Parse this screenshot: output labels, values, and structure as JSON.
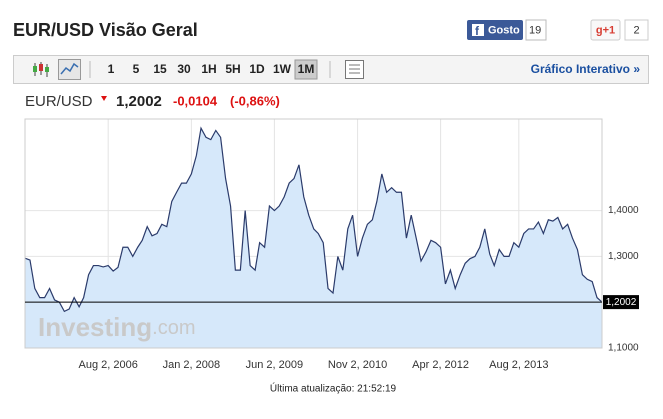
{
  "header": {
    "title": "EUR/USD Visão Geral",
    "like_label": "Gosto",
    "like_count": "19",
    "plus_label": "g+1",
    "plus_count": "2"
  },
  "toolbar": {
    "intervals": [
      "1",
      "5",
      "15",
      "30",
      "1H",
      "5H",
      "1D",
      "1W",
      "1M"
    ],
    "link": "Gráfico Interativo »"
  },
  "quote": {
    "symbol": "EUR/USD",
    "change": "-0,0104",
    "change_pct": "(-0,86%)"
  },
  "watermark": {
    "brand": "Investing",
    "suffix": ".com"
  },
  "footer": "Última atualização: 21:52:19",
  "chart_data": {
    "type": "line",
    "color": "#2b3b6b",
    "fill": "#d6e8fa",
    "grid": true,
    "last_price": 1.2002,
    "last_price_label": "1,2002",
    "xlim": [
      "2005-03-02",
      "2015-01-02"
    ],
    "xticks": [
      {
        "value": "2006-08-02",
        "label": "Aug 2, 2006"
      },
      {
        "value": "2008-01-02",
        "label": "Jan 2, 2008"
      },
      {
        "value": "2009-06-02",
        "label": "Jun 2, 2009"
      },
      {
        "value": "2010-11-02",
        "label": "Nov 2, 2010"
      },
      {
        "value": "2012-04-02",
        "label": "Apr 2, 2012"
      },
      {
        "value": "2013-08-02",
        "label": "Aug 2, 2013"
      }
    ],
    "ylim": [
      1.1,
      1.6
    ],
    "yticks": [
      {
        "value": 1.1,
        "label": "1,1000"
      },
      {
        "value": 1.3,
        "label": "1,3000"
      },
      {
        "value": 1.4,
        "label": "1,4000"
      }
    ],
    "x": [
      "2005-03-02",
      "2005-04-02",
      "2005-05-02",
      "2005-06-02",
      "2005-07-02",
      "2005-08-02",
      "2005-09-02",
      "2005-10-02",
      "2005-11-02",
      "2005-12-02",
      "2006-01-02",
      "2006-02-02",
      "2006-03-02",
      "2006-04-02",
      "2006-05-02",
      "2006-06-02",
      "2006-07-02",
      "2006-08-02",
      "2006-09-02",
      "2006-10-02",
      "2006-11-02",
      "2006-12-02",
      "2007-01-02",
      "2007-02-02",
      "2007-03-02",
      "2007-04-02",
      "2007-05-02",
      "2007-06-02",
      "2007-07-02",
      "2007-08-02",
      "2007-09-02",
      "2007-10-02",
      "2007-11-02",
      "2007-12-02",
      "2008-01-02",
      "2008-02-02",
      "2008-03-02",
      "2008-04-02",
      "2008-05-02",
      "2008-06-02",
      "2008-07-02",
      "2008-08-02",
      "2008-09-02",
      "2008-10-02",
      "2008-11-02",
      "2008-12-02",
      "2009-01-02",
      "2009-02-02",
      "2009-03-02",
      "2009-04-02",
      "2009-05-02",
      "2009-06-02",
      "2009-07-02",
      "2009-08-02",
      "2009-09-02",
      "2009-10-02",
      "2009-11-02",
      "2009-12-02",
      "2010-01-02",
      "2010-02-02",
      "2010-03-02",
      "2010-04-02",
      "2010-05-02",
      "2010-06-02",
      "2010-07-02",
      "2010-08-02",
      "2010-09-02",
      "2010-10-02",
      "2010-11-02",
      "2010-12-02",
      "2011-01-02",
      "2011-02-02",
      "2011-03-02",
      "2011-04-02",
      "2011-05-02",
      "2011-06-02",
      "2011-07-02",
      "2011-08-02",
      "2011-09-02",
      "2011-10-02",
      "2011-11-02",
      "2011-12-02",
      "2012-01-02",
      "2012-02-02",
      "2012-03-02",
      "2012-04-02",
      "2012-05-02",
      "2012-06-02",
      "2012-07-02",
      "2012-08-02",
      "2012-09-02",
      "2012-10-02",
      "2012-11-02",
      "2012-12-02",
      "2013-01-02",
      "2013-02-02",
      "2013-03-02",
      "2013-04-02",
      "2013-05-02",
      "2013-06-02",
      "2013-07-02",
      "2013-08-02",
      "2013-09-02",
      "2013-10-02",
      "2013-11-02",
      "2013-12-02",
      "2014-01-02",
      "2014-02-02",
      "2014-03-02",
      "2014-04-02",
      "2014-05-02",
      "2014-06-02",
      "2014-07-02",
      "2014-08-02",
      "2014-09-02",
      "2014-10-02",
      "2014-11-02",
      "2014-12-02",
      "2015-01-02"
    ],
    "values": [
      1.296,
      1.292,
      1.23,
      1.21,
      1.21,
      1.23,
      1.205,
      1.2,
      1.18,
      1.185,
      1.21,
      1.19,
      1.21,
      1.26,
      1.28,
      1.28,
      1.277,
      1.28,
      1.268,
      1.276,
      1.32,
      1.32,
      1.3,
      1.32,
      1.335,
      1.365,
      1.345,
      1.35,
      1.37,
      1.365,
      1.42,
      1.44,
      1.46,
      1.46,
      1.48,
      1.52,
      1.58,
      1.56,
      1.555,
      1.575,
      1.56,
      1.47,
      1.41,
      1.27,
      1.27,
      1.4,
      1.28,
      1.27,
      1.33,
      1.32,
      1.41,
      1.4,
      1.41,
      1.43,
      1.46,
      1.47,
      1.5,
      1.43,
      1.39,
      1.36,
      1.35,
      1.33,
      1.23,
      1.22,
      1.3,
      1.27,
      1.36,
      1.39,
      1.3,
      1.34,
      1.37,
      1.38,
      1.42,
      1.48,
      1.44,
      1.45,
      1.44,
      1.44,
      1.34,
      1.39,
      1.34,
      1.29,
      1.31,
      1.335,
      1.33,
      1.32,
      1.24,
      1.27,
      1.23,
      1.26,
      1.285,
      1.295,
      1.3,
      1.32,
      1.36,
      1.305,
      1.28,
      1.315,
      1.3,
      1.3,
      1.33,
      1.32,
      1.35,
      1.36,
      1.36,
      1.375,
      1.35,
      1.38,
      1.377,
      1.385,
      1.36,
      1.37,
      1.34,
      1.315,
      1.26,
      1.25,
      1.245,
      1.21,
      1.2002
    ]
  }
}
